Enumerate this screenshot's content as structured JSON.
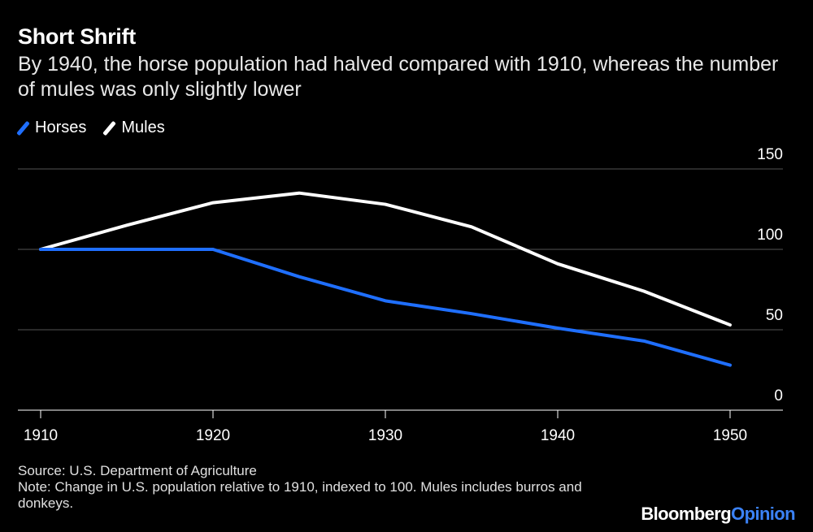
{
  "title": "Short Shrift",
  "subtitle": "By 1940, the horse population had halved compared with 1910, whereas the number of mules was only slightly lower",
  "legend": {
    "horses": "Horses",
    "mules": "Mules"
  },
  "footer": {
    "source": "Source: U.S. Department of Agriculture",
    "note": "Note: Change in U.S. population relative to 1910, indexed to 100. Mules includes burros and donkeys."
  },
  "brand": {
    "part1": "Bloomberg",
    "part2": "Opinion"
  },
  "colors": {
    "background": "#000000",
    "horses": "#1f6fff",
    "mules": "#ffffff",
    "grid": "#555555",
    "brand_accent": "#3b82f6"
  },
  "chart_data": {
    "type": "line",
    "x": [
      1910,
      1915,
      1920,
      1925,
      1930,
      1935,
      1940,
      1945,
      1950
    ],
    "series": [
      {
        "name": "Horses",
        "color": "#1f6fff",
        "values": [
          100,
          100,
          100,
          83,
          68,
          60,
          51,
          43,
          28
        ]
      },
      {
        "name": "Mules",
        "color": "#ffffff",
        "values": [
          100,
          115,
          129,
          135,
          128,
          114,
          91,
          74,
          53
        ]
      }
    ],
    "x_ticks": [
      1910,
      1920,
      1930,
      1940,
      1950
    ],
    "y_ticks": [
      0,
      50,
      100,
      150
    ],
    "xlim": [
      1910,
      1950
    ],
    "ylim": [
      0,
      150
    ],
    "y_axis_side": "right",
    "grid": true
  }
}
